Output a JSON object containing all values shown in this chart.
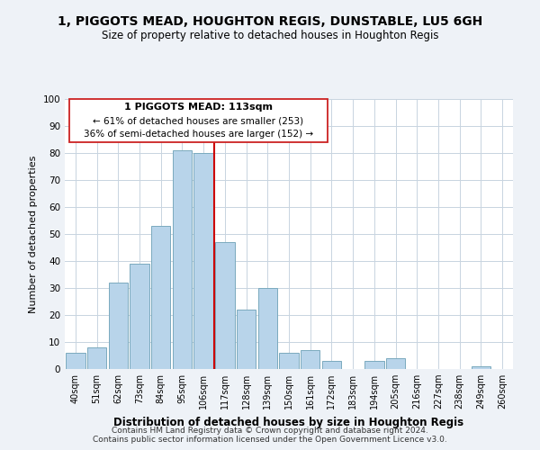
{
  "title": "1, PIGGOTS MEAD, HOUGHTON REGIS, DUNSTABLE, LU5 6GH",
  "subtitle": "Size of property relative to detached houses in Houghton Regis",
  "xlabel": "Distribution of detached houses by size in Houghton Regis",
  "ylabel": "Number of detached properties",
  "bin_labels": [
    "40sqm",
    "51sqm",
    "62sqm",
    "73sqm",
    "84sqm",
    "95sqm",
    "106sqm",
    "117sqm",
    "128sqm",
    "139sqm",
    "150sqm",
    "161sqm",
    "172sqm",
    "183sqm",
    "194sqm",
    "205sqm",
    "216sqm",
    "227sqm",
    "238sqm",
    "249sqm",
    "260sqm"
  ],
  "bar_heights": [
    6,
    8,
    32,
    39,
    53,
    81,
    80,
    47,
    22,
    30,
    6,
    7,
    3,
    0,
    3,
    4,
    0,
    0,
    0,
    1,
    0
  ],
  "bar_color": "#b8d4ea",
  "bar_edge_color": "#7aaabe",
  "vline_color": "#cc0000",
  "ylim": [
    0,
    100
  ],
  "yticks": [
    0,
    10,
    20,
    30,
    40,
    50,
    60,
    70,
    80,
    90,
    100
  ],
  "annotation_title": "1 PIGGOTS MEAD: 113sqm",
  "annotation_line1": "← 61% of detached houses are smaller (253)",
  "annotation_line2": "36% of semi-detached houses are larger (152) →",
  "footer_line1": "Contains HM Land Registry data © Crown copyright and database right 2024.",
  "footer_line2": "Contains public sector information licensed under the Open Government Licence v3.0.",
  "bg_color": "#eef2f7",
  "plot_bg_color": "#ffffff",
  "grid_color": "#c8d4e0",
  "title_fontsize": 10,
  "subtitle_fontsize": 8.5
}
